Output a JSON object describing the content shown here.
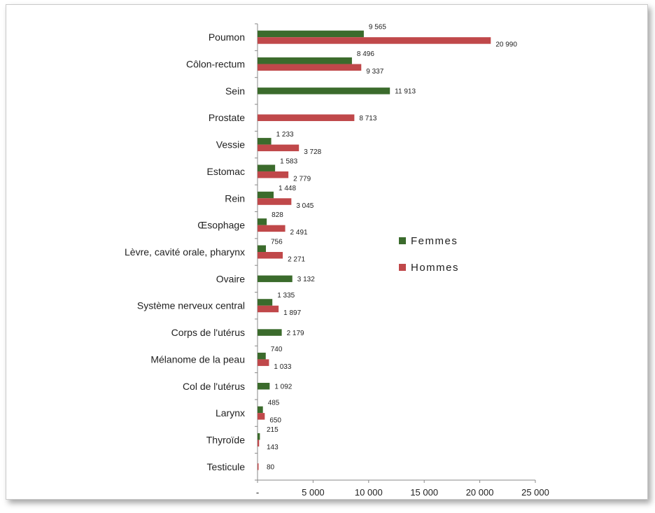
{
  "colors": {
    "femmes": "#3b6b2c",
    "hommes": "#c0484a",
    "axis": "#888888"
  },
  "chart_data": {
    "type": "bar",
    "orientation": "horizontal",
    "title": "",
    "xlabel": "",
    "ylabel": "",
    "xlim": [
      0,
      25000
    ],
    "grid": false,
    "legend_position": "right",
    "x_ticks": [
      {
        "value": 0,
        "label": "-"
      },
      {
        "value": 5000,
        "label": "5 000"
      },
      {
        "value": 10000,
        "label": "10 000"
      },
      {
        "value": 15000,
        "label": "15 000"
      },
      {
        "value": 20000,
        "label": "20 000"
      },
      {
        "value": 25000,
        "label": "25 000"
      }
    ],
    "categories": [
      "Poumon",
      "Côlon-rectum",
      "Sein",
      "Prostate",
      "Vessie",
      "Estomac",
      "Rein",
      "Œsophage",
      "Lèvre, cavité orale, pharynx",
      "Ovaire",
      "Système nerveux central",
      "Corps de l'utérus",
      "Mélanome de la peau",
      "Col de l'utérus",
      "Larynx",
      "Thyroïde",
      "Testicule"
    ],
    "series": [
      {
        "name": "Femmes",
        "color": "#3b6b2c",
        "values": [
          9565,
          8496,
          11913,
          null,
          1233,
          1583,
          1448,
          828,
          756,
          3132,
          1335,
          2179,
          740,
          1092,
          485,
          215,
          null
        ],
        "labels": [
          "9 565",
          "8 496",
          "11 913",
          "",
          "1 233",
          "1 583",
          "1 448",
          "828",
          "756",
          "3 132",
          "1 335",
          "2 179",
          "740",
          "1 092",
          "485",
          "215",
          ""
        ]
      },
      {
        "name": "Hommes",
        "color": "#c0484a",
        "values": [
          20990,
          9337,
          null,
          8713,
          3728,
          2779,
          3045,
          2491,
          2271,
          null,
          1897,
          null,
          1033,
          null,
          650,
          143,
          80
        ],
        "labels": [
          "20 990",
          "9 337",
          "",
          "8 713",
          "3 728",
          "2 779",
          "3 045",
          "2 491",
          "2 271",
          "",
          "1 897",
          "",
          "1 033",
          "",
          "650",
          "143",
          "80"
        ]
      }
    ]
  }
}
